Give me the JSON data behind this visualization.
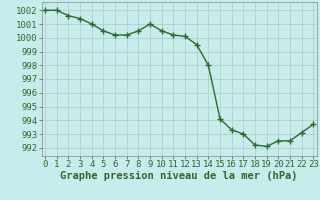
{
  "x": [
    0,
    1,
    2,
    3,
    4,
    5,
    6,
    7,
    8,
    9,
    10,
    11,
    12,
    13,
    14,
    15,
    16,
    17,
    18,
    19,
    20,
    21,
    22,
    23
  ],
  "y": [
    1002,
    1002,
    1001.6,
    1001.4,
    1001,
    1000.5,
    1000.2,
    1000.2,
    1000.5,
    1001,
    1000.5,
    1000.2,
    1000.1,
    999.5,
    998,
    994.1,
    993.3,
    993,
    992.2,
    992.1,
    992.5,
    992.5,
    993.1,
    993.7
  ],
  "line_color": "#2d6a2d",
  "marker_color": "#2d6a2d",
  "bg_color": "#c8ecec",
  "grid_color": "#b0c8c8",
  "ylabel_ticks": [
    992,
    993,
    994,
    995,
    996,
    997,
    998,
    999,
    1000,
    1001,
    1002
  ],
  "ylim": [
    991.4,
    1002.6
  ],
  "xlim": [
    -0.3,
    23.3
  ],
  "xlabel": "Graphe pression niveau de la mer (hPa)",
  "xlabel_fontsize": 7.5,
  "tick_fontsize": 6.5,
  "marker_size": 2.5,
  "line_width": 1.0
}
